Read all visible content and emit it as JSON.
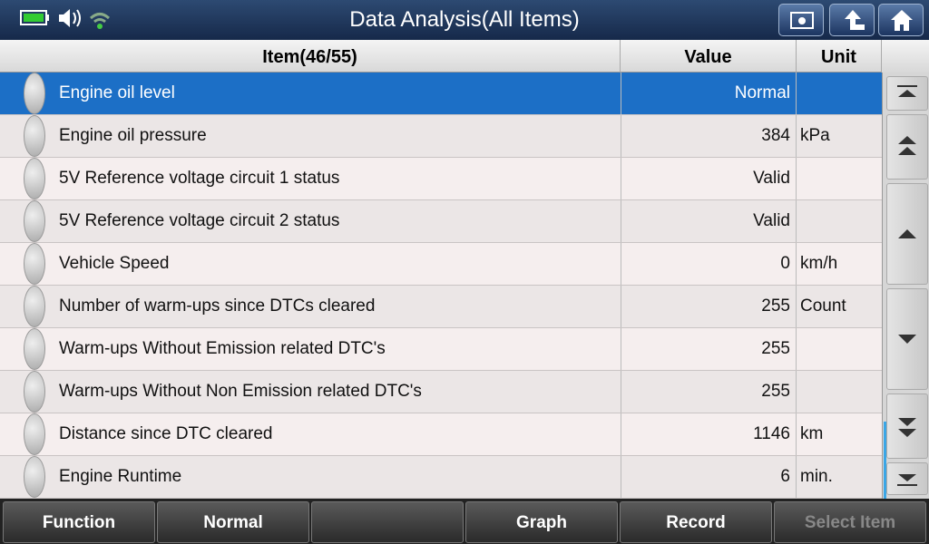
{
  "header": {
    "title": "Data Analysis(All Items)"
  },
  "table": {
    "columns": [
      "Item(46/55)",
      "Value",
      "Unit"
    ],
    "selected": 0,
    "rows": [
      {
        "item": "Engine oil level",
        "value": "Normal"
      },
      {
        "item": "Engine oil pressure",
        "value": 384,
        "unit": "kPa"
      },
      {
        "item": "5V Reference voltage circuit 1 status",
        "value": "Valid"
      },
      {
        "item": "5V Reference voltage circuit 2 status",
        "value": "Valid"
      },
      {
        "item": "Vehicle Speed",
        "value": 0,
        "unit": "km/h"
      },
      {
        "item": "Number of warm-ups since DTCs cleared",
        "value": 255,
        "unit": "Count"
      },
      {
        "item": "Warm-ups Without Emission related DTC's",
        "value": 255
      },
      {
        "item": "Warm-ups Without Non Emission related DTC's",
        "value": 255
      },
      {
        "item": "Distance since DTC cleared",
        "value": 1146,
        "unit": "km"
      },
      {
        "item": "Engine Runtime",
        "value": 6,
        "unit": "min."
      }
    ]
  },
  "toolbar": {
    "buttons": [
      {
        "label": "Function",
        "enabled": true
      },
      {
        "label": "Normal",
        "enabled": true
      },
      {
        "label": "Graph",
        "enabled": true
      },
      {
        "label": "Record",
        "enabled": true
      },
      {
        "label": "Select Item",
        "enabled": false
      }
    ]
  }
}
